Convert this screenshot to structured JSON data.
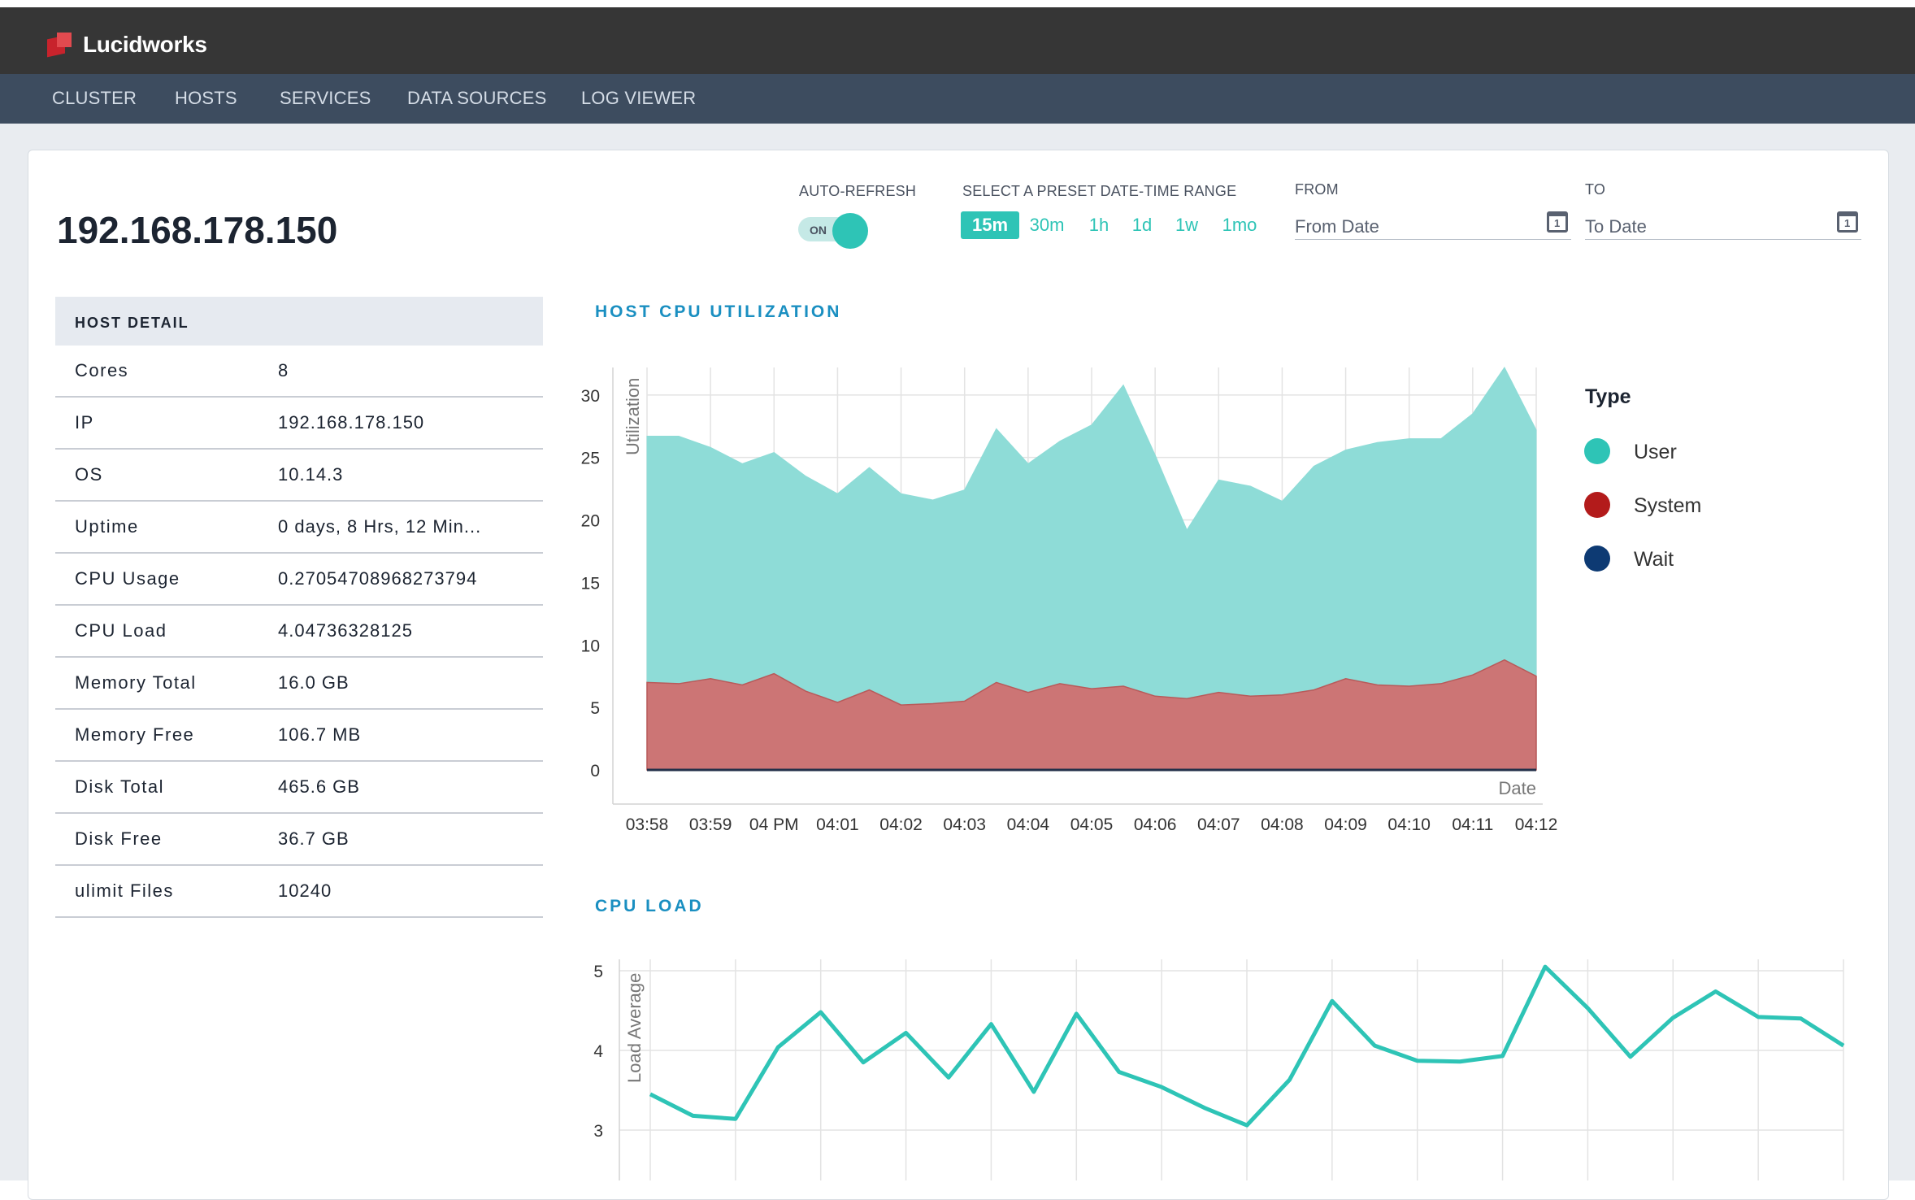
{
  "app": {
    "name": "Lucidworks"
  },
  "nav": {
    "items": [
      "CLUSTER",
      "HOSTS",
      "SERVICES",
      "DATA SOURCES",
      "LOG VIEWER"
    ]
  },
  "host": {
    "title": "192.168.178.150"
  },
  "controls": {
    "auto_refresh_label": "AUTO-REFRESH",
    "toggle_text": "ON",
    "preset_label": "SELECT A PRESET DATE-TIME RANGE",
    "presets": [
      "15m",
      "30m",
      "1h",
      "1d",
      "1w",
      "1mo"
    ],
    "active_preset": "15m",
    "from_label": "FROM",
    "from_placeholder": "From Date",
    "to_label": "TO",
    "to_placeholder": "To Date"
  },
  "host_detail": {
    "heading": "HOST DETAIL",
    "rows": [
      {
        "key": "Cores",
        "value": "8"
      },
      {
        "key": "IP",
        "value": "192.168.178.150"
      },
      {
        "key": "OS",
        "value": "10.14.3"
      },
      {
        "key": "Uptime",
        "value": "0 days, 8 Hrs, 12 Min..."
      },
      {
        "key": "CPU Usage",
        "value": "0.27054708968273794"
      },
      {
        "key": "CPU Load",
        "value": "4.04736328125"
      },
      {
        "key": "Memory Total",
        "value": "16.0 GB"
      },
      {
        "key": "Memory Free",
        "value": "106.7 MB"
      },
      {
        "key": "Disk Total",
        "value": "465.6 GB"
      },
      {
        "key": "Disk Free",
        "value": "36.7 GB"
      },
      {
        "key": "ulimit Files",
        "value": "10240"
      }
    ]
  },
  "colors": {
    "user": "#8edcd7",
    "system": "#cc7575",
    "user_legend": "#2ec4b6",
    "system_legend": "#b31b1b",
    "wait_legend": "#0d3a73",
    "line": "#2ec4b6"
  },
  "chart_data": [
    {
      "type": "area",
      "title": "HOST CPU UTILIZATION",
      "xlabel": "Date",
      "ylabel": "Utilization",
      "ylim": [
        0,
        30
      ],
      "yticks": [
        0,
        5,
        10,
        15,
        20,
        25,
        30
      ],
      "xticks": [
        "03:58",
        "03:59",
        "04 PM",
        "04:01",
        "04:02",
        "04:03",
        "04:04",
        "04:05",
        "04:06",
        "04:07",
        "04:08",
        "04:09",
        "04:10",
        "04:11",
        "04:12"
      ],
      "legend_title": "Type",
      "legend_position": "right",
      "grid": true,
      "series": [
        {
          "name": "User",
          "total_values": [
            26.7,
            26.7,
            25.8,
            24.5,
            25.4,
            23.5,
            22.1,
            24.2,
            22.1,
            21.6,
            22.4,
            27.3,
            24.5,
            26.3,
            27.6,
            30.8,
            25.2,
            19.2,
            23.2,
            22.7,
            21.5,
            24.3,
            25.6,
            26.2,
            26.5,
            26.5,
            28.5,
            32.2,
            27.2
          ]
        },
        {
          "name": "System",
          "values": [
            7.0,
            6.9,
            7.3,
            6.8,
            7.7,
            6.3,
            5.4,
            6.4,
            5.2,
            5.3,
            5.5,
            7.0,
            6.2,
            6.9,
            6.5,
            6.7,
            5.9,
            5.7,
            6.2,
            5.9,
            6.0,
            6.4,
            7.3,
            6.8,
            6.7,
            6.9,
            7.6,
            8.8,
            7.5
          ]
        },
        {
          "name": "Wait",
          "values": []
        }
      ]
    },
    {
      "type": "line",
      "title": "CPU LOAD",
      "ylabel": "Load Average",
      "yticks": [
        3,
        4,
        5
      ],
      "grid": true,
      "series": [
        {
          "name": "Load Average",
          "values": [
            3.45,
            3.18,
            3.14,
            4.04,
            4.48,
            3.85,
            4.22,
            3.66,
            4.33,
            3.48,
            4.46,
            3.73,
            3.54,
            3.28,
            3.06,
            3.63,
            4.62,
            4.06,
            3.87,
            3.86,
            3.93,
            5.05,
            4.53,
            3.92,
            4.41,
            4.74,
            4.42,
            4.4,
            4.06
          ]
        }
      ]
    }
  ]
}
